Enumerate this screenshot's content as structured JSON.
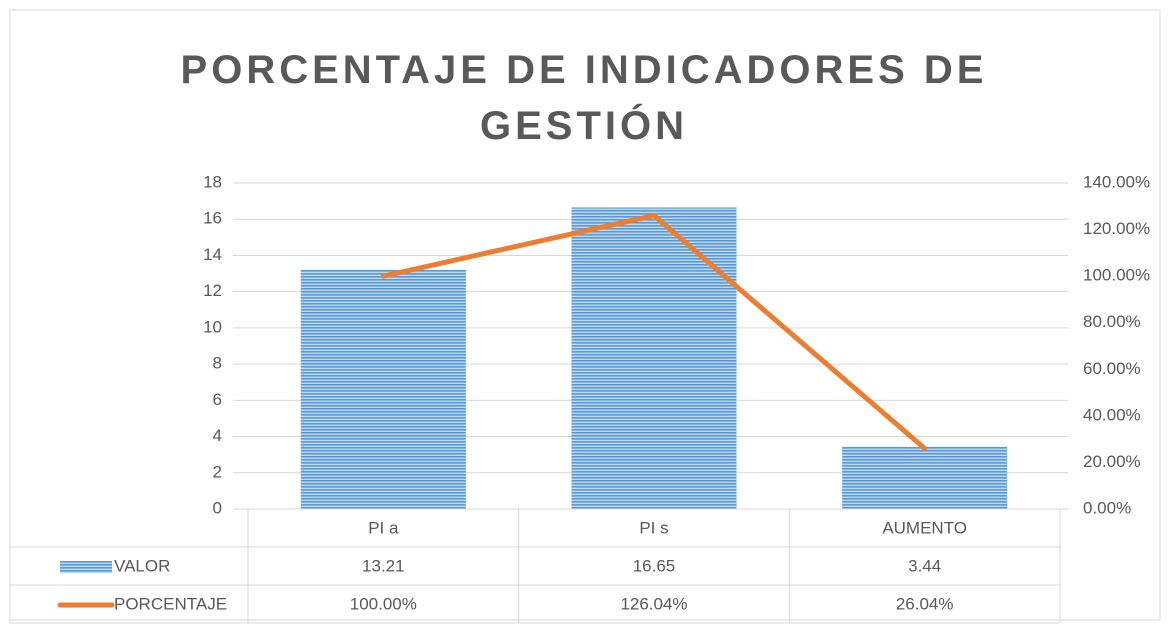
{
  "chart_data": {
    "type": "bar_line",
    "title": "PORCENTAJE DE INDICADORES DE GESTIÓN",
    "categories": [
      "PI a",
      "PI s",
      "AUMENTO"
    ],
    "series": [
      {
        "name": "VALOR",
        "type": "bar",
        "color": "#5b9bd5",
        "values": [
          13.21,
          16.65,
          3.44
        ]
      },
      {
        "name": "PORCENTAJE",
        "type": "line",
        "axis": "y2",
        "color": "#ed7d31",
        "values": [
          100,
          126.04,
          26.04
        ],
        "value_labels": [
          "100.00%",
          "126.04%",
          "26.04%"
        ]
      }
    ],
    "ylim": [
      0,
      18
    ],
    "yticks": [
      0,
      2,
      4,
      6,
      8,
      10,
      12,
      14,
      16,
      18
    ],
    "y2lim": [
      0,
      140
    ],
    "y2ticks": [
      {
        "value": 0,
        "label": "0.00%"
      },
      {
        "value": 20,
        "label": "20.00%"
      },
      {
        "value": 40,
        "label": "40.00%"
      },
      {
        "value": 60,
        "label": "60.00%"
      },
      {
        "value": 80,
        "label": "80.00%"
      },
      {
        "value": 100,
        "label": "100.00%"
      },
      {
        "value": 120,
        "label": "120.00%"
      },
      {
        "value": 140,
        "label": "140.00%"
      }
    ],
    "grid": true,
    "data_table": true
  }
}
